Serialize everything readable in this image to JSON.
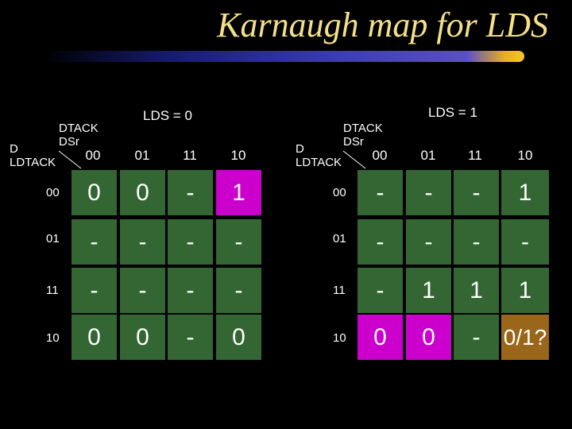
{
  "title": "Karnaugh map for LDS",
  "maps": [
    {
      "label": "LDS = 0",
      "corner": {
        "col_vars": "DTACK DSr",
        "col_vars_1": "DTACK",
        "col_vars_2": "DSr",
        "row_vars_1": "D",
        "row_vars_2": "LDTACK"
      },
      "col_headers": [
        "00",
        "01",
        "11",
        "10"
      ],
      "row_headers": [
        "00",
        "01",
        "11",
        "10"
      ],
      "cells": [
        [
          "0",
          "0",
          "-",
          "1"
        ],
        [
          "-",
          "-",
          "-",
          "-"
        ],
        [
          "-",
          "-",
          "-",
          "-"
        ],
        [
          "0",
          "0",
          "-",
          "0"
        ]
      ],
      "highlight": {
        "row": 0,
        "col": 3,
        "color": "#cc00cc"
      }
    },
    {
      "label": "LDS = 1",
      "corner": {
        "col_vars_1": "DTACK",
        "col_vars_2": "DSr",
        "row_vars_1": "D",
        "row_vars_2": "LDTACK"
      },
      "col_headers": [
        "00",
        "01",
        "11",
        "10"
      ],
      "row_headers": [
        "00",
        "01",
        "11",
        "10"
      ],
      "cells": [
        [
          "-",
          "-",
          "-",
          "1"
        ],
        [
          "-",
          "-",
          "-",
          "-"
        ],
        [
          "-",
          "1",
          "1",
          "1"
        ],
        [
          "0",
          "0",
          "-",
          "0/1?"
        ]
      ],
      "highlights": [
        {
          "row": 3,
          "col": 0,
          "color": "#cc00cc"
        },
        {
          "row": 3,
          "col": 1,
          "color": "#cc00cc"
        },
        {
          "row": 3,
          "col": 3,
          "color": "#99661a"
        }
      ]
    }
  ],
  "colors": {
    "background": "#000000",
    "title": "#f5e08a",
    "cell": "#336633",
    "magenta": "#cc00cc",
    "orange": "#99661a",
    "label_box": "#ffffff"
  }
}
